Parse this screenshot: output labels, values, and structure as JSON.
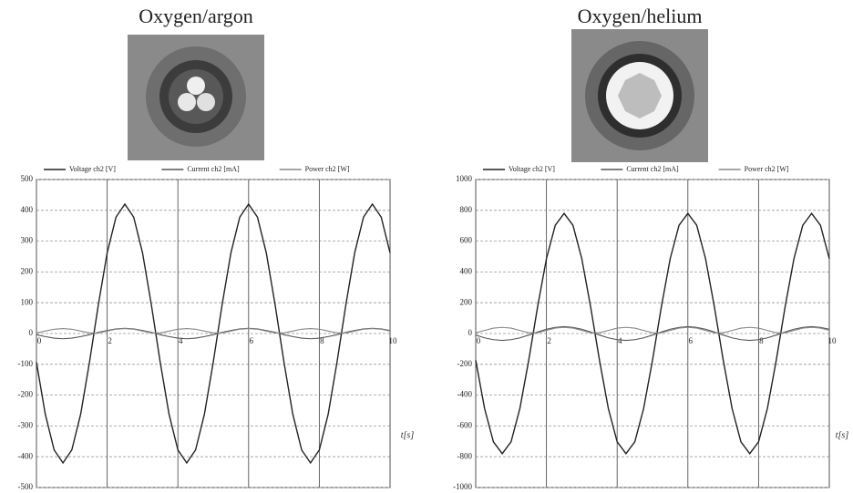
{
  "chart_data": [
    {
      "type": "line",
      "title": "Oxygen/argon",
      "x_label": "t[s]",
      "x": [
        0,
        0.25,
        0.5,
        0.75,
        1,
        1.25,
        1.5,
        1.75,
        2,
        2.25,
        2.5,
        2.75,
        3,
        3.25,
        3.5,
        3.75,
        4,
        4.25,
        4.5,
        4.75,
        5,
        5.25,
        5.5,
        5.75,
        6,
        6.25,
        6.5,
        6.75,
        7,
        7.25,
        7.5,
        7.75,
        8,
        8.25,
        8.5,
        8.75,
        9,
        9.25,
        9.5,
        9.75,
        10
      ],
      "xlim": [
        0,
        10
      ],
      "xticks": [
        0,
        2,
        4,
        6,
        8,
        10
      ],
      "ylim": [
        -500,
        500
      ],
      "yticks": [
        -500,
        -400,
        -300,
        -200,
        -100,
        0,
        100,
        200,
        300,
        400,
        500
      ],
      "grid": true,
      "series": [
        {
          "name": "Voltage ch2 [V]",
          "color": "#222222",
          "values": [
            -93,
            -262,
            -378,
            -420,
            -378,
            -262,
            -93,
            93,
            262,
            378,
            420,
            378,
            262,
            93,
            -93,
            -262,
            -378,
            -420,
            -378,
            -262,
            -93,
            93,
            262,
            378,
            420,
            378,
            262,
            93,
            -93,
            -262,
            -378,
            -420,
            -378,
            -262,
            -93,
            93,
            262,
            378,
            420,
            378,
            262
          ]
        },
        {
          "name": "Current ch2 [mA]",
          "color": "#555555",
          "values": [
            -4,
            -10,
            -15,
            -17,
            -15,
            -10,
            -4,
            4,
            10,
            15,
            17,
            15,
            10,
            4,
            -4,
            -10,
            -15,
            -17,
            -15,
            -10,
            -4,
            4,
            10,
            15,
            17,
            15,
            10,
            4,
            -4,
            -10,
            -15,
            -17,
            -15,
            -10,
            -4,
            4,
            10,
            15,
            17,
            15,
            10
          ]
        },
        {
          "name": "Power ch2 [W]",
          "color": "#888888",
          "values": [
            2,
            8,
            14,
            16,
            14,
            8,
            2,
            2,
            8,
            14,
            16,
            14,
            8,
            2,
            2,
            8,
            14,
            16,
            14,
            8,
            2,
            2,
            8,
            14,
            16,
            14,
            8,
            2,
            2,
            8,
            14,
            16,
            14,
            8,
            2,
            2,
            8,
            14,
            16,
            14,
            8
          ]
        }
      ]
    },
    {
      "type": "line",
      "title": "Oxygen/helium",
      "x_label": "t[s]",
      "x": [
        0,
        0.25,
        0.5,
        0.75,
        1,
        1.25,
        1.5,
        1.75,
        2,
        2.25,
        2.5,
        2.75,
        3,
        3.25,
        3.5,
        3.75,
        4,
        4.25,
        4.5,
        4.75,
        5,
        5.25,
        5.5,
        5.75,
        6,
        6.25,
        6.5,
        6.75,
        7,
        7.25,
        7.5,
        7.75,
        8,
        8.25,
        8.5,
        8.75,
        9,
        9.25,
        9.5,
        9.75,
        10
      ],
      "xlim": [
        0,
        10
      ],
      "xticks": [
        0,
        2,
        4,
        6,
        8,
        10
      ],
      "ylim": [
        -1000,
        1000
      ],
      "yticks": [
        -1000,
        -800,
        -600,
        -400,
        -200,
        0,
        200,
        400,
        600,
        800,
        1000
      ],
      "grid": true,
      "series": [
        {
          "name": "Voltage ch2 [V]",
          "color": "#222222",
          "values": [
            -173,
            -486,
            -703,
            -780,
            -703,
            -486,
            -173,
            173,
            486,
            703,
            780,
            703,
            486,
            173,
            -173,
            -486,
            -703,
            -780,
            -703,
            -486,
            -173,
            173,
            486,
            703,
            780,
            703,
            486,
            173,
            -173,
            -486,
            -703,
            -780,
            -703,
            -486,
            -173,
            173,
            486,
            703,
            780,
            703,
            486
          ]
        },
        {
          "name": "Current ch2 [mA]",
          "color": "#555555",
          "values": [
            -10,
            -28,
            -40,
            -45,
            -40,
            -28,
            -10,
            10,
            28,
            40,
            45,
            40,
            28,
            10,
            -10,
            -28,
            -40,
            -45,
            -40,
            -28,
            -10,
            10,
            28,
            40,
            45,
            40,
            28,
            10,
            -10,
            -28,
            -40,
            -45,
            -40,
            -28,
            -10,
            10,
            28,
            40,
            45,
            40,
            28
          ]
        },
        {
          "name": "Power ch2 [W]",
          "color": "#888888",
          "values": [
            5,
            20,
            35,
            40,
            35,
            20,
            5,
            5,
            20,
            35,
            40,
            35,
            20,
            5,
            5,
            20,
            35,
            40,
            35,
            20,
            5,
            5,
            20,
            35,
            40,
            35,
            20,
            5,
            5,
            20,
            35,
            40,
            35,
            20,
            5,
            5,
            20,
            35,
            40,
            35,
            20
          ]
        }
      ]
    }
  ]
}
